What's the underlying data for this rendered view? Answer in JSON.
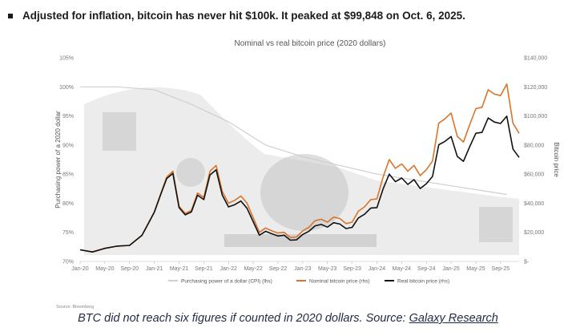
{
  "headline": "Adjusted for inflation, bitcoin has never hit $100k. It peaked at $99,848 on Oct. 6, 2025.",
  "caption": {
    "text": "BTC did not reach six figures if counted in 2020 dollars. Source: ",
    "link": "Galaxy Research"
  },
  "source": "Source: Bloomberg",
  "colors": {
    "nominal": "#d9742b",
    "real": "#111111",
    "cpi": "#cfcfcf"
  },
  "chart_data": {
    "type": "line",
    "title": "Nominal vs real bitcoin price (2020 dollars)",
    "ylabel_left": "Purchasing power of a 2020 dollar",
    "ylabel_right": "Bitcoin price",
    "x_ticks": [
      "Jan-20",
      "May-20",
      "Sep-20",
      "Jan-21",
      "May-21",
      "Sep-21",
      "Jan-22",
      "May-22",
      "Sep-22",
      "Jan-23",
      "May-23",
      "Sep-23",
      "Jan-24",
      "May-24",
      "Sep-24",
      "Jan-25",
      "May-25",
      "Sep-25"
    ],
    "y_left_ticks": [
      "105%",
      "100%",
      "95%",
      "90%",
      "85%",
      "80%",
      "75%",
      "70%"
    ],
    "y_right_ticks": [
      "$140,000",
      "$120,000",
      "$100,000",
      "$80,000",
      "$60,000",
      "$40,000",
      "$20,000",
      "$-"
    ],
    "ylim_left": [
      70,
      105
    ],
    "ylim_right": [
      0,
      140000
    ],
    "legend": [
      "Purchasing power of a dollar (CPI) (lhs)",
      "Nominal bitcoin price (rhs)",
      "Real bitcoin price (rhs)"
    ],
    "legend_position": "bottom",
    "grid": false,
    "series": [
      {
        "name": "Purchasing power of a dollar (CPI) (lhs)",
        "axis": "left",
        "x": [
          "2020-01",
          "2020-07",
          "2021-01",
          "2021-07",
          "2022-01",
          "2022-07",
          "2023-01",
          "2023-07",
          "2024-01",
          "2024-07",
          "2025-01",
          "2025-07",
          "2025-10"
        ],
        "values": [
          100,
          100,
          99.5,
          97,
          94,
          90,
          88,
          86.5,
          85,
          84,
          83,
          82,
          81.5
        ]
      },
      {
        "name": "Nominal bitcoin price (rhs)",
        "axis": "right",
        "x": [
          "2020-01",
          "2020-03",
          "2020-05",
          "2020-07",
          "2020-09",
          "2020-11",
          "2020-12",
          "2021-01",
          "2021-02",
          "2021-03",
          "2021-04",
          "2021-05",
          "2021-06",
          "2021-07",
          "2021-08",
          "2021-09",
          "2021-10",
          "2021-11",
          "2021-12",
          "2022-01",
          "2022-02",
          "2022-03",
          "2022-04",
          "2022-05",
          "2022-06",
          "2022-07",
          "2022-08",
          "2022-09",
          "2022-10",
          "2022-11",
          "2022-12",
          "2023-01",
          "2023-02",
          "2023-03",
          "2023-04",
          "2023-05",
          "2023-06",
          "2023-07",
          "2023-08",
          "2023-09",
          "2023-10",
          "2023-11",
          "2023-12",
          "2024-01",
          "2024-02",
          "2024-03",
          "2024-04",
          "2024-05",
          "2024-06",
          "2024-07",
          "2024-08",
          "2024-09",
          "2024-10",
          "2024-11",
          "2024-12",
          "2025-01",
          "2025-02",
          "2025-03",
          "2025-04",
          "2025-05",
          "2025-06",
          "2025-07",
          "2025-08",
          "2025-09",
          "2025-10",
          "2025-11",
          "2025-12"
        ],
        "values": [
          8000,
          6500,
          9000,
          10500,
          11000,
          18000,
          26000,
          34000,
          46000,
          58000,
          62000,
          38000,
          33000,
          35000,
          47000,
          44000,
          62000,
          66000,
          48000,
          40000,
          42000,
          45000,
          40000,
          30000,
          20000,
          23000,
          21000,
          19500,
          20000,
          16500,
          16800,
          21000,
          23500,
          28000,
          29000,
          27000,
          30500,
          29500,
          26000,
          27000,
          34500,
          37500,
          42500,
          43000,
          58000,
          70000,
          64000,
          67000,
          62000,
          66000,
          59000,
          63000,
          69000,
          95000,
          98000,
          102000,
          86000,
          82000,
          94000,
          105000,
          106000,
          118000,
          115000,
          114000,
          122000,
          95000,
          88000
        ]
      },
      {
        "name": "Real bitcoin price (rhs)",
        "axis": "right",
        "x": [
          "2020-01",
          "2020-03",
          "2020-05",
          "2020-07",
          "2020-09",
          "2020-11",
          "2020-12",
          "2021-01",
          "2021-02",
          "2021-03",
          "2021-04",
          "2021-05",
          "2021-06",
          "2021-07",
          "2021-08",
          "2021-09",
          "2021-10",
          "2021-11",
          "2021-12",
          "2022-01",
          "2022-02",
          "2022-03",
          "2022-04",
          "2022-05",
          "2022-06",
          "2022-07",
          "2022-08",
          "2022-09",
          "2022-10",
          "2022-11",
          "2022-12",
          "2023-01",
          "2023-02",
          "2023-03",
          "2023-04",
          "2023-05",
          "2023-06",
          "2023-07",
          "2023-08",
          "2023-09",
          "2023-10",
          "2023-11",
          "2023-12",
          "2024-01",
          "2024-02",
          "2024-03",
          "2024-04",
          "2024-05",
          "2024-06",
          "2024-07",
          "2024-08",
          "2024-09",
          "2024-10",
          "2024-11",
          "2024-12",
          "2025-01",
          "2025-02",
          "2025-03",
          "2025-04",
          "2025-05",
          "2025-06",
          "2025-07",
          "2025-08",
          "2025-09",
          "2025-10",
          "2025-11",
          "2025-12"
        ],
        "values": [
          8000,
          6500,
          9000,
          10500,
          11000,
          17900,
          25800,
          33800,
          45500,
          57000,
          60500,
          37000,
          32000,
          34000,
          45500,
          42500,
          59500,
          63000,
          45500,
          37500,
          39000,
          41500,
          36500,
          27300,
          18000,
          20700,
          19000,
          17500,
          18000,
          14600,
          14800,
          18500,
          20700,
          24500,
          25400,
          23600,
          26600,
          25700,
          22600,
          23400,
          29900,
          32400,
          36700,
          37000,
          49800,
          60000,
          54800,
          57300,
          52900,
          56200,
          50100,
          53400,
          58400,
          80200,
          82500,
          85900,
          72200,
          68800,
          78900,
          88100,
          88700,
          98600,
          95800,
          94800,
          99800,
          77300,
          71500
        ]
      }
    ]
  }
}
